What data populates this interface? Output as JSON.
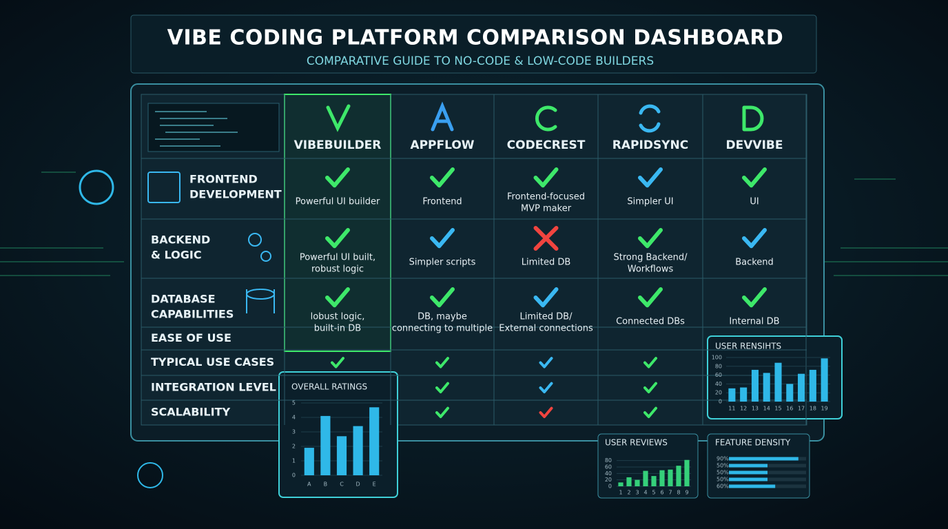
{
  "header": {
    "title": "VIBE CODING PLATFORM COMPARISON DASHBOARD",
    "subtitle": "COMPARATIVE GUIDE TO NO-CODE & LOW-CODE BUILDERS"
  },
  "table": {
    "columns": [
      "VIBEBUILDER",
      "APPFLOW",
      "CODECREST",
      "RAPIDSYNC",
      "DEVVIBE"
    ],
    "rows": [
      {
        "label": [
          "FRONTEND",
          "DEVELOPMENT"
        ],
        "cells": [
          {
            "status": "check",
            "color": "#3ee86a",
            "text": [
              "Powerful UI builder"
            ]
          },
          {
            "status": "check",
            "color": "#3ee86a",
            "text": [
              "Frontend"
            ]
          },
          {
            "status": "check",
            "color": "#3ee86a",
            "text": [
              "Frontend-focused",
              "MVP maker"
            ]
          },
          {
            "status": "check",
            "color": "#3ab8f2",
            "text": [
              "Simpler UI"
            ]
          },
          {
            "status": "check",
            "color": "#3ee86a",
            "text": [
              "UI"
            ]
          }
        ]
      },
      {
        "label": [
          "BACKEND",
          "& LOGIC"
        ],
        "cells": [
          {
            "status": "check",
            "color": "#3ee86a",
            "text": [
              "Powerful UI built,",
              "robust logic"
            ]
          },
          {
            "status": "check",
            "color": "#3ab8f2",
            "text": [
              "Simpler scripts"
            ]
          },
          {
            "status": "cross",
            "color": "#f0443f",
            "text": [
              "Limited DB"
            ]
          },
          {
            "status": "check",
            "color": "#3ee86a",
            "text": [
              "Strong Backend/",
              "Workflows"
            ]
          },
          {
            "status": "check",
            "color": "#3ab8f2",
            "text": [
              "Backend"
            ]
          }
        ]
      },
      {
        "label": [
          "DATABASE",
          "CAPABILITIES"
        ],
        "cells": [
          {
            "status": "check",
            "color": "#3ee86a",
            "text": [
              "lobust logic,",
              "built-in DB"
            ]
          },
          {
            "status": "check",
            "color": "#3ee86a",
            "text": [
              "DB, maybe",
              "connecting to multiple"
            ]
          },
          {
            "status": "check",
            "color": "#3ab8f2",
            "text": [
              "Limited DB/",
              "External connections"
            ]
          },
          {
            "status": "check",
            "color": "#3ee86a",
            "text": [
              "Connected DBs"
            ]
          },
          {
            "status": "check",
            "color": "#3ee86a",
            "text": [
              "Internal DB"
            ]
          }
        ]
      },
      {
        "label": [
          "EASE OF USE"
        ],
        "cells": []
      },
      {
        "label": [
          "TYPICAL USE CASES"
        ],
        "cells": [
          {
            "status": "check",
            "color": "#3ee86a"
          },
          {
            "status": "check",
            "color": "#3ee86a"
          },
          {
            "status": "check",
            "color": "#3ab8f2"
          },
          {
            "status": "check",
            "color": "#3ee86a"
          },
          null
        ]
      },
      {
        "label": [
          "INTEGRATION LEVEL"
        ],
        "cells": [
          null,
          {
            "status": "check",
            "color": "#3ee86a"
          },
          {
            "status": "check",
            "color": "#3ab8f2"
          },
          {
            "status": "check",
            "color": "#3ee86a"
          },
          null
        ]
      },
      {
        "label": [
          "SCALABILITY"
        ],
        "cells": [
          null,
          {
            "status": "check",
            "color": "#3ee86a"
          },
          {
            "status": "check",
            "color": "#f0443f"
          },
          {
            "status": "check",
            "color": "#3ee86a"
          },
          null
        ]
      }
    ]
  },
  "chart_data": [
    {
      "type": "bar",
      "title": "OVERALL RATINGS",
      "categories": [
        "A",
        "B",
        "C",
        "D",
        "E"
      ],
      "values": [
        1.9,
        4.1,
        2.7,
        3.4,
        4.7
      ],
      "color": "#2fb8e8",
      "ylim": [
        0,
        5
      ],
      "yticks": [
        0,
        1,
        2,
        3,
        4,
        5
      ]
    },
    {
      "type": "bar",
      "title": "USER RENSIHTS",
      "categories": [
        "11",
        "12",
        "13",
        "14",
        "15",
        "16",
        "17",
        "18",
        "19"
      ],
      "values": [
        30,
        32,
        72,
        65,
        88,
        40,
        63,
        72,
        98
      ],
      "color": "#2fb8e8",
      "ylim": [
        0,
        100
      ],
      "yticks": [
        0,
        20,
        40,
        60,
        80,
        100
      ]
    },
    {
      "type": "bar",
      "title": "USER REVIEWS",
      "categories": [
        "1",
        "2",
        "3",
        "4",
        "5",
        "6",
        "7",
        "8",
        "9"
      ],
      "values": [
        12,
        28,
        20,
        48,
        32,
        50,
        52,
        64,
        82
      ],
      "color": "#35d07a",
      "ylim": [
        0,
        90
      ],
      "yticks": [
        0,
        20,
        40,
        60,
        80
      ]
    },
    {
      "type": "barh",
      "title": "FEATURE DENSITY",
      "values": [
        90,
        50,
        50,
        50,
        60
      ],
      "value_labels": [
        "90%",
        "50%",
        "50%",
        "50%",
        "60%"
      ],
      "color": "#2fb8e8",
      "xlim": [
        0,
        100
      ]
    }
  ]
}
